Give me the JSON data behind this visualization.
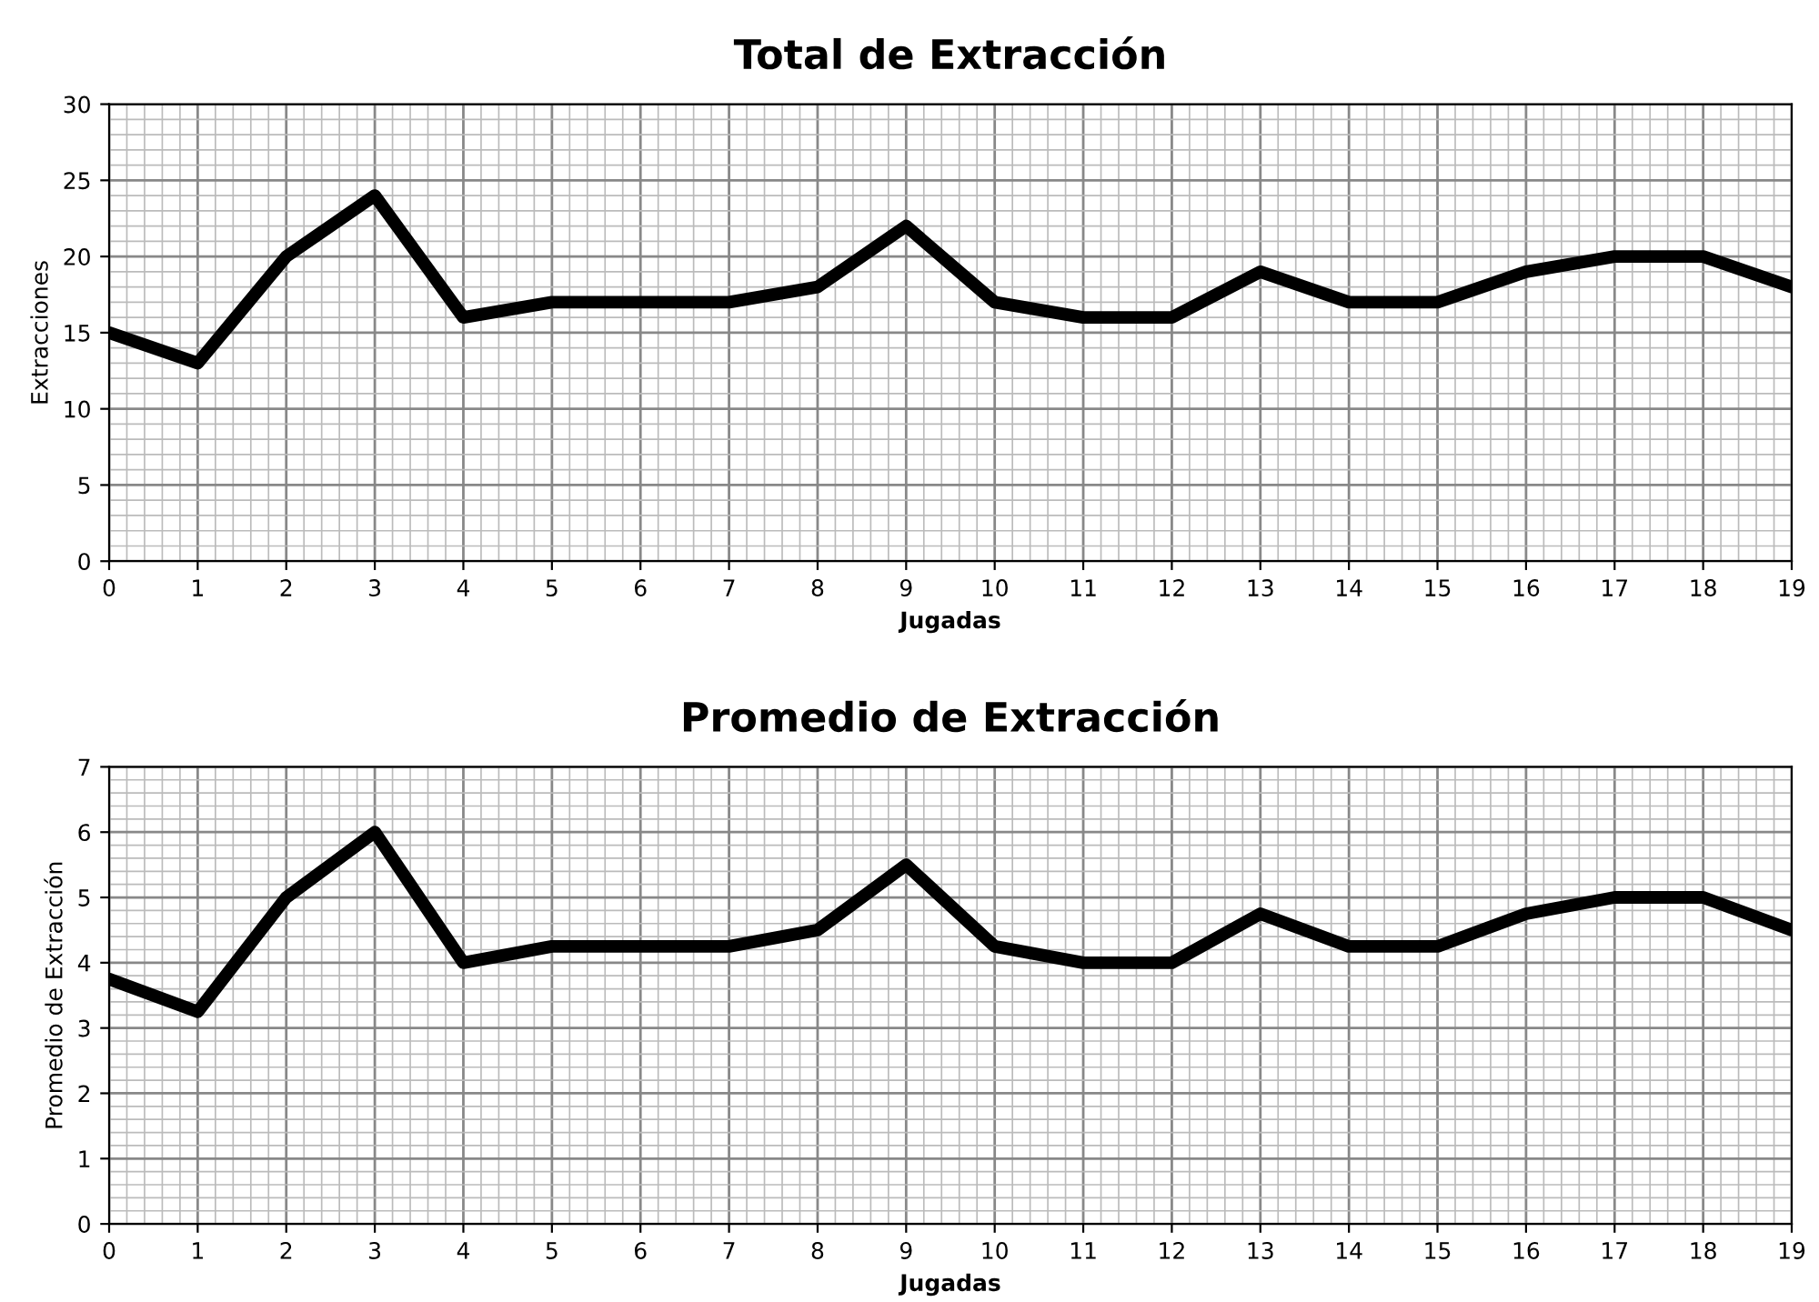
{
  "chart_data": [
    {
      "type": "line",
      "title": "Total de Extracción",
      "xlabel": "Jugadas",
      "ylabel": "Extracciones",
      "x": [
        0,
        1,
        2,
        3,
        4,
        5,
        6,
        7,
        8,
        9,
        10,
        11,
        12,
        13,
        14,
        15,
        16,
        17,
        18,
        19
      ],
      "series": [
        {
          "color": "#000000",
          "values": [
            15,
            13,
            20,
            24,
            16,
            17,
            17,
            17,
            18,
            22,
            17,
            16,
            16,
            19,
            17,
            17,
            19,
            20,
            20,
            18
          ]
        }
      ],
      "xlim": [
        0,
        19
      ],
      "xticks": [
        0,
        1,
        2,
        3,
        4,
        5,
        6,
        7,
        8,
        9,
        10,
        11,
        12,
        13,
        14,
        15,
        16,
        17,
        18,
        19
      ],
      "ylim": [
        0,
        30
      ],
      "yticks": [
        0,
        5,
        10,
        15,
        20,
        25,
        30
      ],
      "grid": true,
      "marker": "none",
      "line_style": "solid"
    },
    {
      "type": "line",
      "title": "Promedio de Extracción",
      "xlabel": "Jugadas",
      "ylabel": "Promedio de Extracción",
      "x": [
        0,
        1,
        2,
        3,
        4,
        5,
        6,
        7,
        8,
        9,
        10,
        11,
        12,
        13,
        14,
        15,
        16,
        17,
        18,
        19
      ],
      "series": [
        {
          "color": "#000000",
          "values": [
            3.75,
            3.25,
            5,
            6,
            4,
            4.25,
            4.25,
            4.25,
            4.5,
            5.5,
            4.25,
            4,
            4,
            4.75,
            4.25,
            4.25,
            4.75,
            5,
            5,
            4.5
          ]
        }
      ],
      "xlim": [
        0,
        19
      ],
      "xticks": [
        0,
        1,
        2,
        3,
        4,
        5,
        6,
        7,
        8,
        9,
        10,
        11,
        12,
        13,
        14,
        15,
        16,
        17,
        18,
        19
      ],
      "ylim": [
        0,
        7
      ],
      "yticks": [
        0,
        1,
        2,
        3,
        4,
        5,
        6,
        7
      ],
      "grid": true,
      "marker": "none",
      "line_style": "solid"
    }
  ]
}
